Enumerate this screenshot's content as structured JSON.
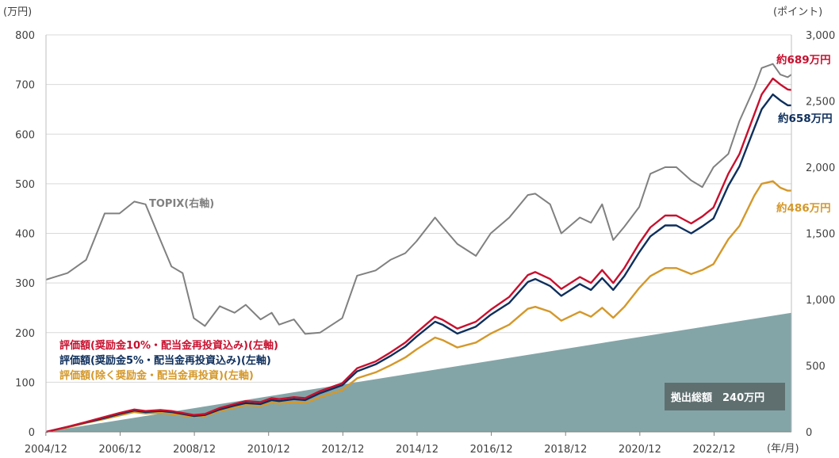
{
  "chart_data": {
    "type": "line",
    "left_unit": "(万円)",
    "right_unit": "(ポイント)",
    "x_unit": "(年/月)",
    "left_ylim": [
      0,
      800
    ],
    "right_ylim": [
      0,
      3000
    ],
    "left_ticks": [
      "800",
      "700",
      "600",
      "500",
      "400",
      "300",
      "200",
      "100",
      "0"
    ],
    "right_ticks": [
      "3,000",
      "2,500",
      "2,000",
      "1,500",
      "1,000",
      "500",
      "0"
    ],
    "x_ticks": [
      "2004/12",
      "2006/12",
      "2008/12",
      "2010/12",
      "2012/12",
      "2014/12",
      "2016/12",
      "2018/12",
      "2020/12",
      "2022/12"
    ],
    "grid": true,
    "colors": {
      "topix": "#808080",
      "s10": "#C8102E",
      "s5": "#0E2F5C",
      "s0": "#D4982A",
      "contrib": "#84A5A8",
      "box": "#5F6F70"
    },
    "labels": {
      "topix": "TOPIX(右軸)",
      "s10": "評価額(奨励金10%・配当金再投資込み)(左軸)",
      "s5": "評価額(奨励金5%・配当金再投資込み)(左軸)",
      "s0": "評価額(除く奨励金・配当金再投資)(左軸)",
      "contrib": "拠出総額　240万円",
      "end_s10": "約689万円",
      "end_s5": "約658万円",
      "end_s0": "約486万円"
    },
    "contribution_range_manyen": [
      0,
      240
    ],
    "series": [
      {
        "key": "topix",
        "name": "TOPIX(右軸)",
        "axis": "right",
        "x": [
          2004.92,
          2005.5,
          2006.0,
          2006.5,
          2006.9,
          2007.3,
          2007.6,
          2008.0,
          2008.3,
          2008.6,
          2008.9,
          2009.2,
          2009.6,
          2010.0,
          2010.3,
          2010.7,
          2011.0,
          2011.2,
          2011.6,
          2011.9,
          2012.3,
          2012.9,
          2013.3,
          2013.8,
          2014.2,
          2014.6,
          2014.9,
          2015.4,
          2015.6,
          2016.0,
          2016.5,
          2016.9,
          2017.4,
          2017.9,
          2018.1,
          2018.5,
          2018.8,
          2019.3,
          2019.6,
          2019.9,
          2020.2,
          2020.5,
          2020.9,
          2021.2,
          2021.6,
          2021.9,
          2022.3,
          2022.6,
          2022.9,
          2023.3,
          2023.6,
          2024.0,
          2024.2,
          2024.5,
          2024.7,
          2024.9,
          2025.0
        ],
        "values": [
          1150,
          1200,
          1300,
          1650,
          1650,
          1740,
          1720,
          1450,
          1250,
          1200,
          860,
          800,
          950,
          900,
          960,
          850,
          900,
          810,
          850,
          740,
          750,
          860,
          1180,
          1220,
          1300,
          1350,
          1440,
          1620,
          1550,
          1420,
          1330,
          1500,
          1620,
          1790,
          1800,
          1720,
          1500,
          1620,
          1580,
          1720,
          1450,
          1550,
          1700,
          1950,
          2000,
          2000,
          1900,
          1850,
          2000,
          2100,
          2350,
          2600,
          2750,
          2780,
          2700,
          2680,
          2700
        ]
      },
      {
        "key": "s10",
        "name": "評価額(奨励金10%・配当金再投資込み)(左軸)",
        "axis": "left",
        "x": [
          2004.92,
          2005.5,
          2006.0,
          2006.5,
          2006.9,
          2007.3,
          2007.6,
          2008.0,
          2008.3,
          2008.6,
          2008.9,
          2009.2,
          2009.6,
          2010.0,
          2010.3,
          2010.7,
          2011.0,
          2011.2,
          2011.6,
          2011.9,
          2012.3,
          2012.9,
          2013.3,
          2013.8,
          2014.2,
          2014.6,
          2014.9,
          2015.4,
          2015.6,
          2016.0,
          2016.5,
          2016.9,
          2017.4,
          2017.9,
          2018.1,
          2018.5,
          2018.8,
          2019.3,
          2019.6,
          2019.9,
          2020.2,
          2020.5,
          2020.9,
          2021.2,
          2021.6,
          2021.9,
          2022.3,
          2022.6,
          2022.9,
          2023.3,
          2023.6,
          2024.0,
          2024.2,
          2024.5,
          2024.7,
          2024.9,
          2025.0
        ],
        "values": [
          0,
          10,
          20,
          30,
          38,
          45,
          42,
          44,
          42,
          38,
          34,
          36,
          48,
          56,
          62,
          60,
          68,
          66,
          70,
          68,
          82,
          98,
          128,
          142,
          160,
          180,
          200,
          232,
          226,
          208,
          222,
          246,
          272,
          316,
          322,
          308,
          288,
          312,
          300,
          326,
          300,
          330,
          380,
          412,
          436,
          436,
          420,
          434,
          452,
          520,
          560,
          640,
          680,
          712,
          700,
          690,
          689
        ]
      },
      {
        "key": "s5",
        "name": "評価額(奨励金5%・配当金再投資込み)(左軸)",
        "axis": "left",
        "x": [
          2004.92,
          2005.5,
          2006.0,
          2006.5,
          2006.9,
          2007.3,
          2007.6,
          2008.0,
          2008.3,
          2008.6,
          2008.9,
          2009.2,
          2009.6,
          2010.0,
          2010.3,
          2010.7,
          2011.0,
          2011.2,
          2011.6,
          2011.9,
          2012.3,
          2012.9,
          2013.3,
          2013.8,
          2014.2,
          2014.6,
          2014.9,
          2015.4,
          2015.6,
          2016.0,
          2016.5,
          2016.9,
          2017.4,
          2017.9,
          2018.1,
          2018.5,
          2018.8,
          2019.3,
          2019.6,
          2019.9,
          2020.2,
          2020.5,
          2020.9,
          2021.2,
          2021.6,
          2021.9,
          2022.3,
          2022.6,
          2022.9,
          2023.3,
          2023.6,
          2024.0,
          2024.2,
          2024.5,
          2024.7,
          2024.9,
          2025.0
        ],
        "values": [
          0,
          10,
          19,
          28,
          36,
          43,
          40,
          42,
          40,
          36,
          32,
          34,
          45,
          53,
          58,
          56,
          64,
          62,
          66,
          64,
          78,
          94,
          122,
          136,
          153,
          172,
          192,
          222,
          216,
          198,
          212,
          236,
          260,
          302,
          308,
          294,
          274,
          298,
          286,
          310,
          286,
          314,
          362,
          394,
          416,
          416,
          400,
          414,
          430,
          496,
          535,
          612,
          650,
          680,
          668,
          658,
          658
        ]
      },
      {
        "key": "s0",
        "name": "評価額(除く奨励金・配当金再投資)(左軸)",
        "axis": "left",
        "x": [
          2004.92,
          2005.5,
          2006.0,
          2006.5,
          2006.9,
          2007.3,
          2007.6,
          2008.0,
          2008.3,
          2008.6,
          2008.9,
          2009.2,
          2009.6,
          2010.0,
          2010.3,
          2010.7,
          2011.0,
          2011.2,
          2011.6,
          2011.9,
          2012.3,
          2012.9,
          2013.3,
          2013.8,
          2014.2,
          2014.6,
          2014.9,
          2015.4,
          2015.6,
          2016.0,
          2016.5,
          2016.9,
          2017.4,
          2017.9,
          2018.1,
          2018.5,
          2018.8,
          2019.3,
          2019.6,
          2019.9,
          2020.2,
          2020.5,
          2020.9,
          2021.2,
          2021.6,
          2021.9,
          2022.3,
          2022.6,
          2022.9,
          2023.3,
          2023.6,
          2024.0,
          2024.2,
          2024.5,
          2024.7,
          2024.9,
          2025.0
        ],
        "values": [
          0,
          9,
          18,
          26,
          33,
          40,
          37,
          38,
          36,
          33,
          30,
          32,
          42,
          49,
          54,
          52,
          59,
          57,
          60,
          58,
          70,
          84,
          108,
          120,
          134,
          150,
          166,
          190,
          185,
          170,
          180,
          198,
          216,
          248,
          252,
          242,
          224,
          242,
          232,
          250,
          230,
          252,
          290,
          314,
          330,
          330,
          318,
          326,
          338,
          388,
          415,
          476,
          500,
          505,
          492,
          486,
          486
        ]
      }
    ]
  }
}
